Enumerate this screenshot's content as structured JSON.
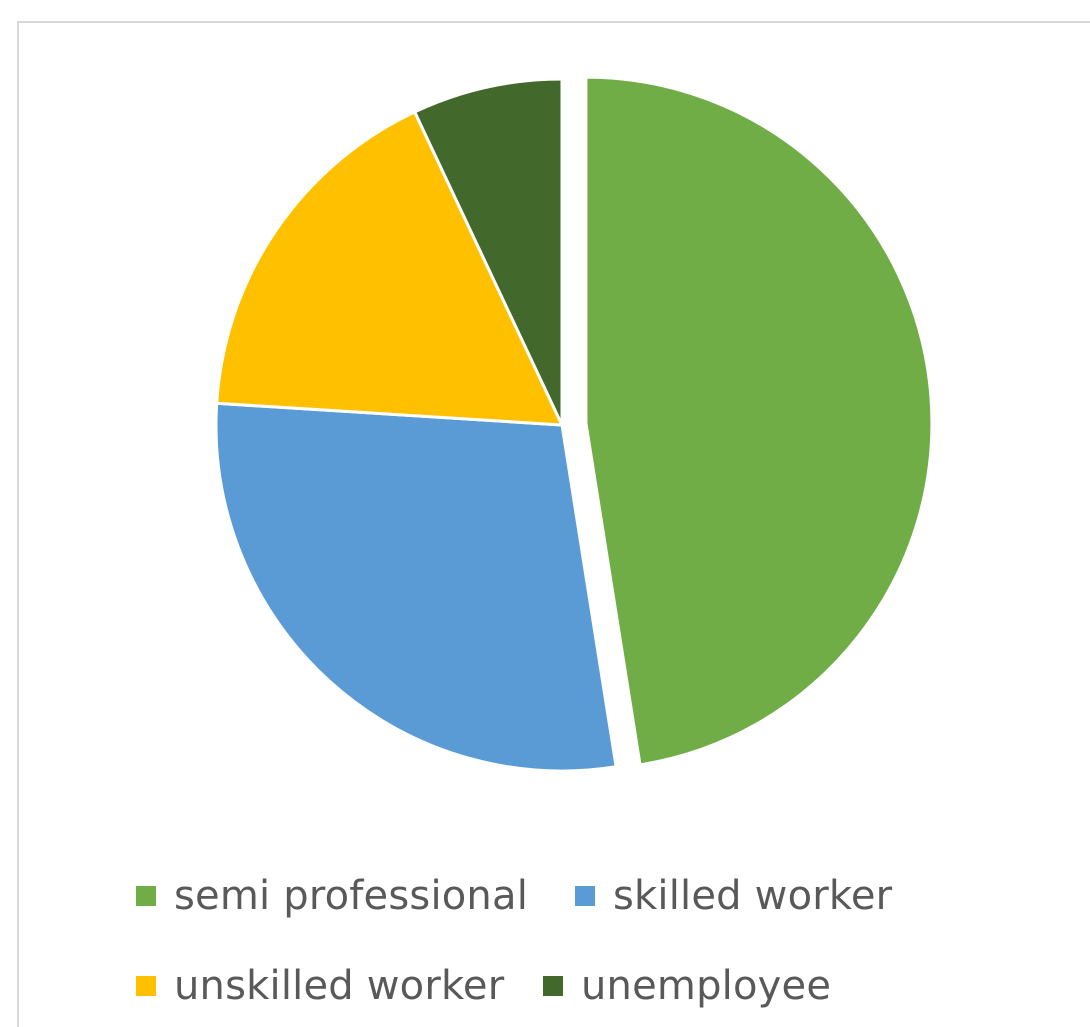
{
  "chart_data": {
    "type": "pie",
    "slices": [
      {
        "label": "semi professional",
        "value": 47.5,
        "color": "#70ad47",
        "exploded": true
      },
      {
        "label": "skilled worker",
        "value": 28.5,
        "color": "#5b9bd5",
        "exploded": false
      },
      {
        "label": "unskilled worker",
        "value": 17.0,
        "color": "#ffc000",
        "exploded": false
      },
      {
        "label": "unemployee",
        "value": 7.0,
        "color": "#43682b",
        "exploded": false
      }
    ],
    "start_angle_deg": 0,
    "direction": "clockwise",
    "legend_position": "bottom",
    "title": ""
  },
  "legend": {
    "items": [
      {
        "label": "semi professional",
        "color": "#70ad47"
      },
      {
        "label": "skilled worker",
        "color": "#5b9bd5"
      },
      {
        "label": "unskilled worker",
        "color": "#ffc000"
      },
      {
        "label": "unemployee",
        "color": "#43682b"
      }
    ]
  }
}
